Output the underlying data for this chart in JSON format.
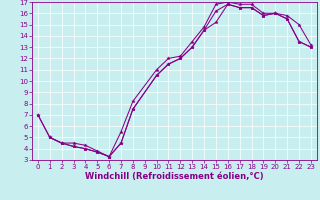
{
  "bg_color": "#c8eef0",
  "line_color": "#880088",
  "xlim": [
    -0.5,
    23.5
  ],
  "ylim": [
    3,
    17
  ],
  "xticks": [
    0,
    1,
    2,
    3,
    4,
    5,
    6,
    7,
    8,
    9,
    10,
    11,
    12,
    13,
    14,
    15,
    16,
    17,
    18,
    19,
    20,
    21,
    22,
    23
  ],
  "yticks": [
    3,
    4,
    5,
    6,
    7,
    8,
    9,
    10,
    11,
    12,
    13,
    14,
    15,
    16,
    17
  ],
  "xlabel": "Windchill (Refroidissement éolien,°C)",
  "tick_fontsize": 5.0,
  "label_fontsize": 6.0,
  "line1_x": [
    0,
    1,
    2,
    3,
    4,
    5,
    6,
    7,
    8,
    10,
    11,
    12,
    13,
    14,
    15,
    16,
    17,
    18,
    19,
    20,
    21,
    22,
    23
  ],
  "line1_y": [
    7,
    5,
    4.5,
    4.5,
    4.3,
    3.8,
    3.3,
    5.5,
    8.2,
    11.0,
    12.0,
    12.2,
    13.5,
    14.8,
    16.8,
    17.0,
    16.8,
    16.8,
    16.0,
    16.0,
    15.8,
    15.0,
    13.2
  ],
  "line2_x": [
    0,
    1,
    2,
    3,
    4,
    5,
    6,
    7,
    8,
    10,
    11,
    12,
    13,
    14,
    15,
    16,
    17,
    18,
    19,
    20,
    21,
    22,
    23
  ],
  "line2_y": [
    7,
    5,
    4.5,
    4.2,
    4.0,
    3.7,
    3.3,
    4.5,
    7.5,
    10.5,
    11.5,
    12.0,
    13.0,
    14.5,
    16.2,
    16.8,
    16.5,
    16.5,
    15.8,
    16.0,
    15.5,
    13.5,
    13.0
  ],
  "line3_x": [
    1,
    2,
    3,
    4,
    5,
    6,
    7,
    8,
    10,
    11,
    12,
    13,
    14,
    15,
    16,
    17,
    18,
    19,
    20,
    21,
    22,
    23
  ],
  "line3_y": [
    5,
    4.5,
    4.2,
    4.0,
    3.7,
    3.3,
    4.5,
    7.5,
    10.5,
    11.5,
    12.0,
    13.0,
    14.5,
    15.2,
    16.8,
    16.5,
    16.5,
    15.8,
    16.0,
    15.5,
    13.5,
    13.0
  ],
  "figsize": [
    3.2,
    2.0
  ],
  "dpi": 100
}
